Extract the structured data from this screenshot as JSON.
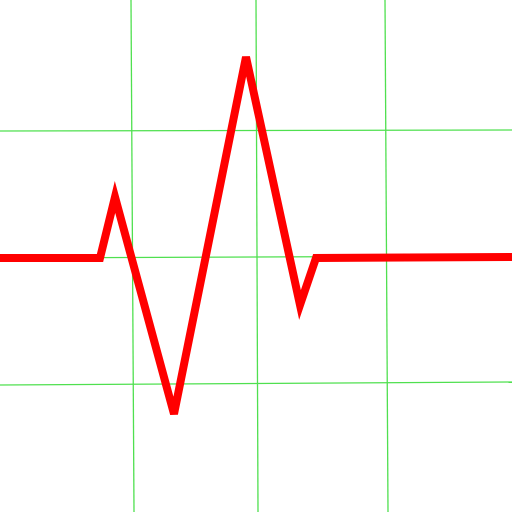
{
  "graphic": {
    "subject": "heartbeat-pulse-waveform",
    "background_color": "#ffffff",
    "grid": {
      "shown": true,
      "color": "#4fe04f",
      "columns": 4,
      "rows": 4
    },
    "trace": {
      "color": "#ff0000",
      "shape": "flat baseline, small up-spike, deep dip, tall peak, small dip, flat baseline"
    }
  }
}
